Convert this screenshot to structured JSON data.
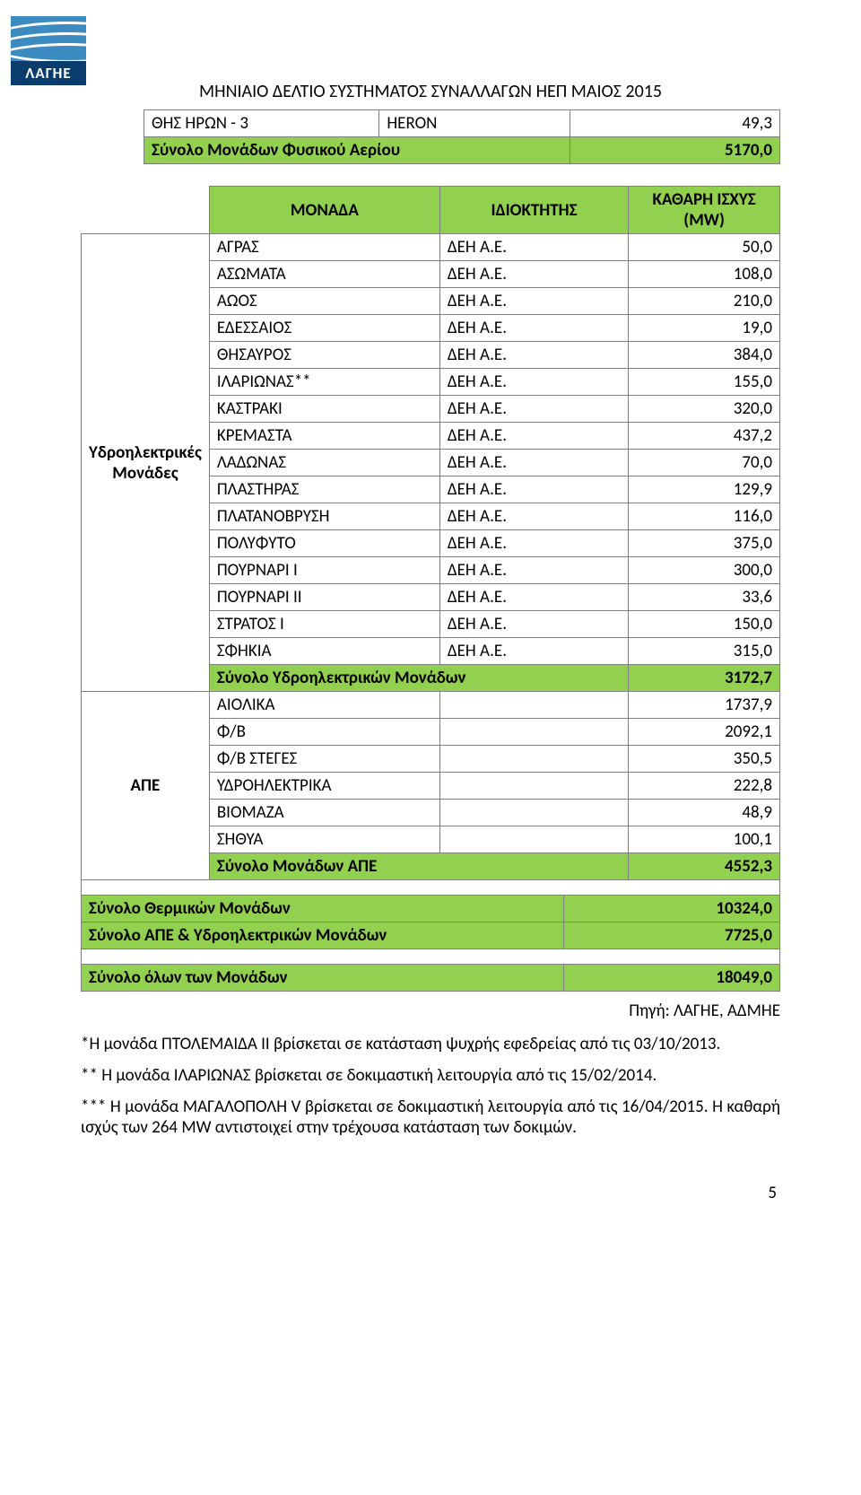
{
  "logo": {
    "text": "ΛΑΓΗΕ"
  },
  "doc_title": "ΜΗΝΙΑΙΟ ΔΕΛΤΙΟ ΣΥΣΤΗΜΑΤΟΣ ΣΥΝΑΛΛΑΓΩΝ ΗΕΠ ΜΑΙΟΣ 2015",
  "top_table": {
    "row1": {
      "c1": "ΘΗΣ ΗΡΩΝ - 3",
      "c2": "HERON",
      "c3": "49,3"
    },
    "row2": {
      "label": "Σύνολο Μονάδων Φυσικού Αερίου",
      "val": "5170,0"
    }
  },
  "main": {
    "header": {
      "c1": "ΜΟΝΑΔΑ",
      "c2": "ΙΔΙΟΚΤΗΤΗΣ",
      "c3": "ΚΑΘΑΡΗ ΙΣΧΥΣ (MW)"
    },
    "hydro_label": "Υδροηλεκτρικές Μονάδες",
    "hydro": [
      {
        "n": "ΑΓΡΑΣ",
        "o": "ΔΕΗ Α.Ε.",
        "v": "50,0"
      },
      {
        "n": "ΑΣΩΜΑΤΑ",
        "o": "ΔΕΗ Α.Ε.",
        "v": "108,0"
      },
      {
        "n": "ΑΩΟΣ",
        "o": "ΔΕΗ Α.Ε.",
        "v": "210,0"
      },
      {
        "n": "ΕΔΕΣΣΑΙΟΣ",
        "o": "ΔΕΗ Α.Ε.",
        "v": "19,0"
      },
      {
        "n": "ΘΗΣΑΥΡΟΣ",
        "o": "ΔΕΗ Α.Ε.",
        "v": "384,0"
      },
      {
        "n": "ΙΛΑΡΙΩΝΑΣ**",
        "o": "ΔΕΗ Α.Ε.",
        "v": "155,0"
      },
      {
        "n": "ΚΑΣΤΡΑΚΙ",
        "o": "ΔΕΗ Α.Ε.",
        "v": "320,0"
      },
      {
        "n": "ΚΡΕΜΑΣΤΑ",
        "o": "ΔΕΗ Α.Ε.",
        "v": "437,2"
      },
      {
        "n": "ΛΑΔΩΝΑΣ",
        "o": "ΔΕΗ Α.Ε.",
        "v": "70,0"
      },
      {
        "n": "ΠΛΑΣΤΗΡΑΣ",
        "o": "ΔΕΗ Α.Ε.",
        "v": "129,9"
      },
      {
        "n": "ΠΛΑΤΑΝΟΒΡΥΣΗ",
        "o": "ΔΕΗ Α.Ε.",
        "v": "116,0"
      },
      {
        "n": "ΠΟΛΥΦΥΤΟ",
        "o": "ΔΕΗ Α.Ε.",
        "v": "375,0"
      },
      {
        "n": "ΠΟΥΡΝΑΡΙ Ι",
        "o": "ΔΕΗ Α.Ε.",
        "v": "300,0"
      },
      {
        "n": "ΠΟΥΡΝΑΡΙ ΙΙ",
        "o": "ΔΕΗ Α.Ε.",
        "v": "33,6"
      },
      {
        "n": "ΣΤΡΑΤΟΣ Ι",
        "o": "ΔΕΗ Α.Ε.",
        "v": "150,0"
      },
      {
        "n": "ΣΦΗΚΙΑ",
        "o": "ΔΕΗ Α.Ε.",
        "v": "315,0"
      }
    ],
    "hydro_total": {
      "label": "Σύνολο Υδροηλεκτρικών Μονάδων",
      "val": "3172,7"
    },
    "ape_label": "ΑΠΕ",
    "ape": [
      {
        "n": "ΑΙΟΛΙΚΑ",
        "v": "1737,9"
      },
      {
        "n": "Φ/Β",
        "v": "2092,1"
      },
      {
        "n": "Φ/Β ΣΤΕΓΕΣ",
        "v": "350,5"
      },
      {
        "n": "ΥΔΡΟΗΛΕΚΤΡΙΚΑ",
        "v": "222,8"
      },
      {
        "n": "ΒΙΟΜΑΖΑ",
        "v": "48,9"
      },
      {
        "n": "ΣΗΘΥΑ",
        "v": "100,1"
      }
    ],
    "ape_total": {
      "label": "Σύνολο Μονάδων ΑΠΕ",
      "val": "4552,3"
    },
    "thermal_total": {
      "label": "Σύνολο Θερμικών Μονάδων",
      "val": "10324,0"
    },
    "ape_hydro_total": {
      "label": "Σύνολο ΑΠΕ & Υδροηλεκτρικών Μονάδων",
      "val": "7725,0"
    },
    "grand_total": {
      "label": "Σύνολο όλων των Μονάδων",
      "val": "18049,0"
    }
  },
  "source": "Πηγή: ΛΑΓΗΕ, ΑΔΜΗΕ",
  "footnotes": {
    "f1": "*Η μονάδα ΠΤΟΛΕΜΑΙΔΑ ΙΙ βρίσκεται σε κατάσταση ψυχρής εφεδρείας από τις 03/10/2013.",
    "f2": "** Η μονάδα ΙΛΑΡΙΩΝΑΣ βρίσκεται σε δοκιμαστική λειτουργία από τις 15/02/2014.",
    "f3": "*** Η μονάδα ΜΑΓΑΛΟΠΟΛΗ V βρίσκεται σε δοκιμαστική λειτουργία από τις 16/04/2015. Η καθαρή ισχύς των 264 MW αντιστοιχεί στην τρέχουσα κατάσταση των δοκιμών."
  },
  "page_number": "5",
  "colors": {
    "green": "#92d050",
    "border": "#7f7f7f",
    "logo_blue": "#3b8bc1",
    "logo_dark": "#0a3d6e"
  }
}
